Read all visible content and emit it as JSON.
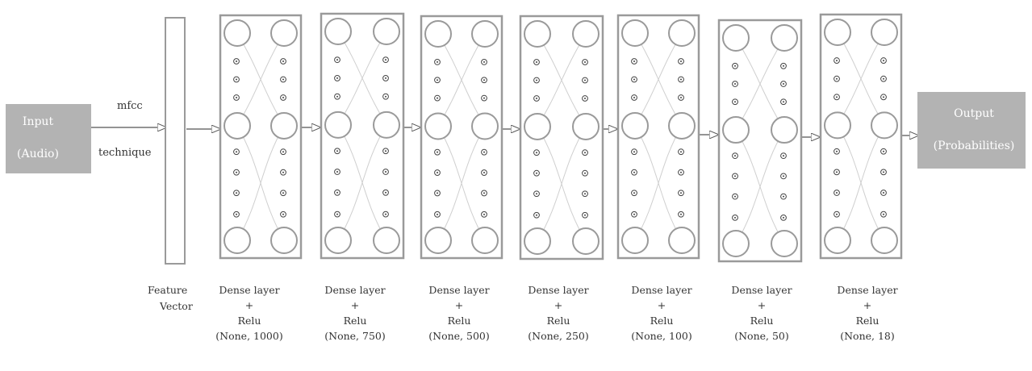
{
  "input_box": {
    "line1": "Input",
    "line2": "(Audio)"
  },
  "preprocess": {
    "line1": "mfcc",
    "line2": "technique"
  },
  "feature_vector": {
    "line1": "Feature",
    "line2": "Vector"
  },
  "output_box": {
    "line1": "Output",
    "line2": "(Probabilities)"
  },
  "layers": [
    {
      "name": "Dense layer",
      "op": "+",
      "activation": "Relu",
      "shape": "(None, 1000)"
    },
    {
      "name": "Dense layer",
      "op": "+",
      "activation": "Relu",
      "shape": "(None, 750)"
    },
    {
      "name": "Dense layer",
      "op": "+",
      "activation": "Relu",
      "shape": "(None, 500)"
    },
    {
      "name": "Dense layer",
      "op": "+",
      "activation": "Relu",
      "shape": "(None, 250)"
    },
    {
      "name": "Dense layer",
      "op": "+",
      "activation": "Relu",
      "shape": "(None, 100)"
    },
    {
      "name": "Dense layer",
      "op": "+",
      "activation": "Relu",
      "shape": "(None, 50)"
    },
    {
      "name": "Dense layer",
      "op": "+",
      "activation": "Relu",
      "shape": "(None, 18)"
    }
  ],
  "colors": {
    "box_stroke": "#9a9a9a",
    "io_fill": "#b3b3b3",
    "arrow": "#555555",
    "faint": "#cfcfcf"
  }
}
